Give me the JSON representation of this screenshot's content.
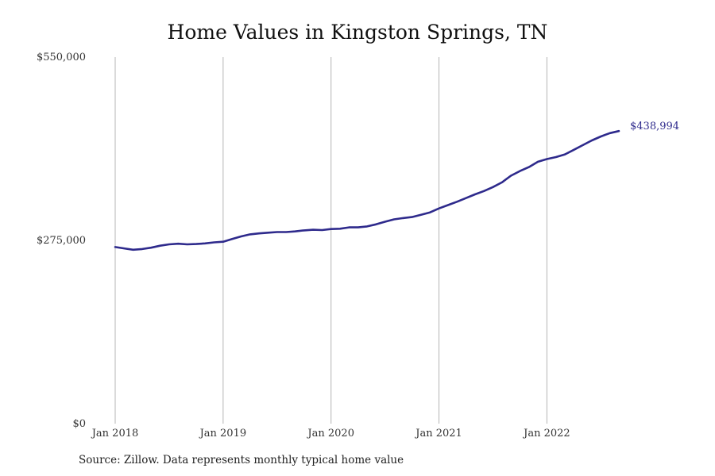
{
  "chart_data": {
    "type": "line",
    "title": "Home Values in Kingston Springs, TN",
    "source": "Source: Zillow. Data represents monthly typical home value",
    "ylim": [
      0,
      550000
    ],
    "y_ticks": [
      {
        "value": 0,
        "label": "$0"
      },
      {
        "value": 275000,
        "label": "$275,000"
      },
      {
        "value": 550000,
        "label": "$550,000"
      }
    ],
    "x_ticks": [
      "Jan 2018",
      "Jan 2019",
      "Jan 2020",
      "Jan 2021",
      "Jan 2022"
    ],
    "x_start": "Jan 2018",
    "x_end": "Sep 2022",
    "grid": "vertical",
    "series": [
      {
        "color": "#2e2a8c",
        "end_label": "$438,994",
        "x": [
          "2018-01",
          "2018-02",
          "2018-03",
          "2018-04",
          "2018-05",
          "2018-06",
          "2018-07",
          "2018-08",
          "2018-09",
          "2018-10",
          "2018-11",
          "2018-12",
          "2019-01",
          "2019-02",
          "2019-03",
          "2019-04",
          "2019-05",
          "2019-06",
          "2019-07",
          "2019-08",
          "2019-09",
          "2019-10",
          "2019-11",
          "2019-12",
          "2020-01",
          "2020-02",
          "2020-03",
          "2020-04",
          "2020-05",
          "2020-06",
          "2020-07",
          "2020-08",
          "2020-09",
          "2020-10",
          "2020-11",
          "2020-12",
          "2021-01",
          "2021-02",
          "2021-03",
          "2021-04",
          "2021-05",
          "2021-06",
          "2021-07",
          "2021-08",
          "2021-09",
          "2021-10",
          "2021-11",
          "2021-12",
          "2022-01",
          "2022-02",
          "2022-03",
          "2022-04",
          "2022-05",
          "2022-06",
          "2022-07",
          "2022-08",
          "2022-09"
        ],
        "values": [
          265000,
          263000,
          261000,
          262000,
          264000,
          267000,
          269000,
          270000,
          269000,
          269500,
          270500,
          272000,
          273000,
          277000,
          281000,
          284000,
          285500,
          286500,
          287500,
          287500,
          288500,
          290000,
          291000,
          290500,
          292000,
          292500,
          294500,
          294500,
          296000,
          299000,
          303000,
          306500,
          308500,
          310000,
          313500,
          317000,
          323000,
          328000,
          333000,
          338500,
          344000,
          349000,
          355000,
          362000,
          372000,
          379000,
          385000,
          393000,
          397000,
          400000,
          404000,
          411000,
          418000,
          425000,
          431000,
          436000,
          438994
        ]
      }
    ]
  }
}
